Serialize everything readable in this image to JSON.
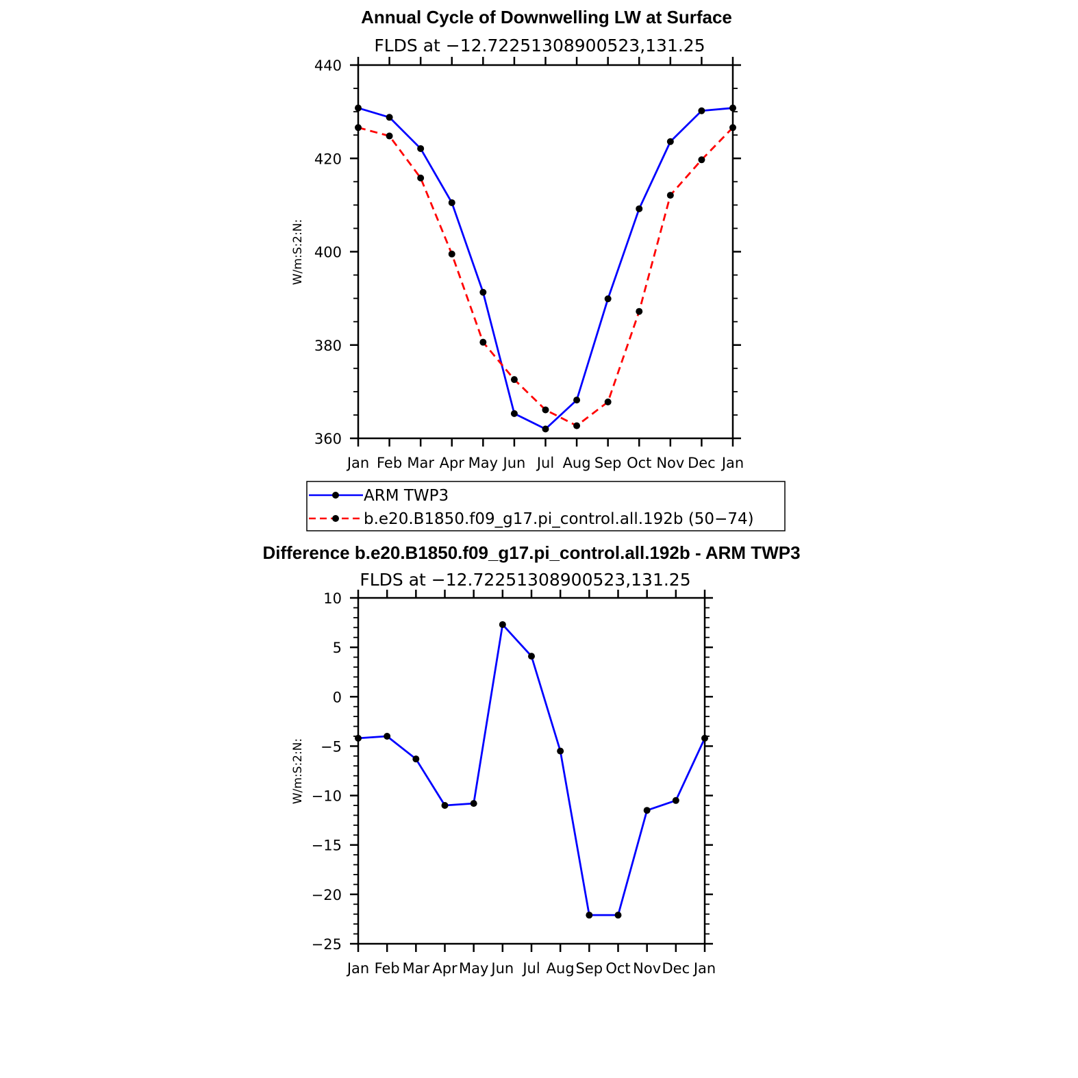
{
  "chart_data": [
    {
      "type": "line",
      "title": "Annual Cycle of Downwelling LW at Surface",
      "subtitle": "FLDS at −12.72251308900523,131.25",
      "ylabel": "W/m:S:2:N:",
      "categories": [
        "Jan",
        "Feb",
        "Mar",
        "Apr",
        "May",
        "Jun",
        "Jul",
        "Aug",
        "Sep",
        "Oct",
        "Nov",
        "Dec",
        "Jan"
      ],
      "ylim": [
        360,
        440
      ],
      "yticks": [
        "360",
        "380",
        "400",
        "420",
        "440"
      ],
      "series": [
        {
          "name": "ARM TWP3",
          "color": "#0000ff",
          "dash": "solid",
          "values": [
            430.8,
            428.8,
            422.1,
            410.5,
            391.3,
            365.3,
            362.0,
            368.2,
            389.9,
            409.2,
            423.6,
            430.2,
            430.8
          ]
        },
        {
          "name": "b.e20.B1850.f09_g17.pi_control.all.192b (50−74)",
          "color": "#ff0000",
          "dash": "dashed",
          "values": [
            426.6,
            424.8,
            415.8,
            399.5,
            380.6,
            372.6,
            366.1,
            362.7,
            367.8,
            387.2,
            412.1,
            419.7,
            426.6
          ]
        }
      ],
      "legend": "below"
    },
    {
      "type": "line",
      "title": "Difference b.e20.B1850.f09_g17.pi_control.all.192b - ARM TWP3",
      "subtitle": "FLDS at −12.72251308900523,131.25",
      "ylabel": "W/m:S:2:N:",
      "categories": [
        "Jan",
        "Feb",
        "Mar",
        "Apr",
        "May",
        "Jun",
        "Jul",
        "Aug",
        "Sep",
        "Oct",
        "Nov",
        "Dec",
        "Jan"
      ],
      "ylim": [
        -25,
        10
      ],
      "yticks": [
        "−25",
        "−20",
        "−15",
        "−10",
        "−5",
        "0",
        "5",
        "10"
      ],
      "series": [
        {
          "color": "#0000ff",
          "dash": "solid",
          "values": [
            -4.2,
            -4.0,
            -6.3,
            -11.0,
            -10.8,
            7.3,
            4.1,
            -5.5,
            -22.1,
            -22.1,
            -11.5,
            -10.5,
            -4.2
          ]
        }
      ]
    }
  ]
}
